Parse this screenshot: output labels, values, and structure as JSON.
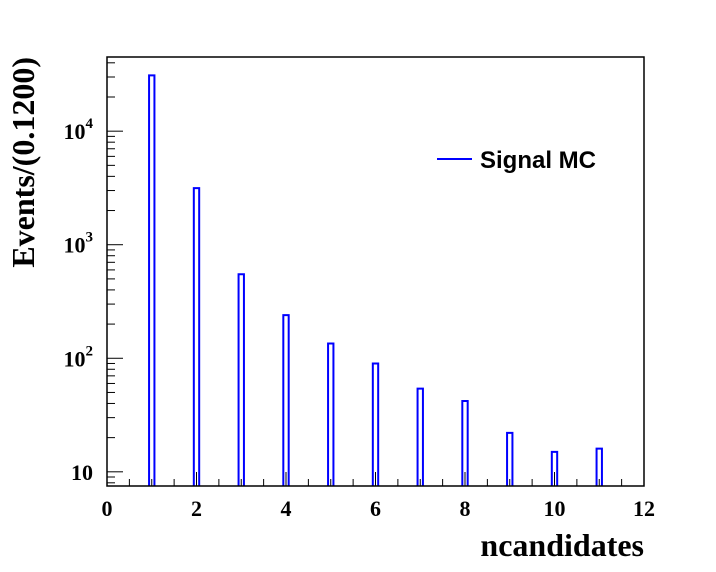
{
  "chart_data": {
    "type": "bar",
    "title": "",
    "xlabel": "ncandidates",
    "ylabel": "Events/(0.1200)",
    "xlim": [
      0,
      12
    ],
    "ylim": [
      7.5,
      45000
    ],
    "yscale": "log",
    "grid": false,
    "legend_position": "top-right",
    "bin_width": 0.12,
    "x_ticks": [
      "0",
      "2",
      "4",
      "6",
      "8",
      "10",
      "12"
    ],
    "y_ticks": [
      {
        "base": "10",
        "exp": ""
      },
      {
        "base": "10",
        "exp": "2"
      },
      {
        "base": "10",
        "exp": "3"
      },
      {
        "base": "10",
        "exp": "4"
      }
    ],
    "series": [
      {
        "name": "Signal MC",
        "color": "#0000ff",
        "x": [
          1,
          2,
          3,
          4,
          5,
          6,
          7,
          8,
          9,
          10,
          11
        ],
        "values": [
          31000,
          3150,
          550,
          240,
          135,
          90,
          54,
          42,
          22,
          15,
          16
        ]
      }
    ]
  }
}
